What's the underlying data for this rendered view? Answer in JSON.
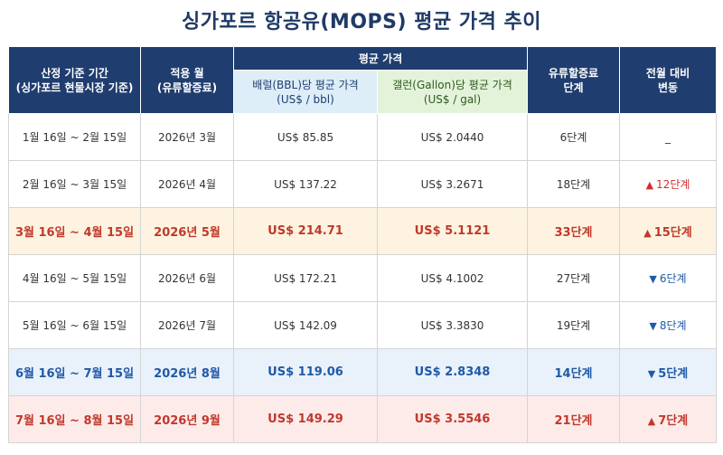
{
  "title": "싱가포르 항공유(MOPS) 평균 가격 추이",
  "headers": {
    "period": "산정 기준 기간\n(싱가포르 현물시장 기준)",
    "applied_month": "적용 월\n(유류할증료)",
    "avg_price": "평균 가격",
    "bbl": "배럴(BBL)당 평균 가격\n(US$ / bbl)",
    "gal": "갤런(Gallon)당 평균 가격\n(US$ / gal)",
    "surcharge_level": "유류할증료\n단계",
    "change": "전월 대비\n변동"
  },
  "rows": [
    {
      "period": "1월 16일 ~ 2월 15일",
      "month": "2026년 3월",
      "bbl": "US$ 85.85",
      "gal": "US$ 2.0440",
      "level": "6단계",
      "change": "_",
      "dir": "none",
      "style": ""
    },
    {
      "period": "2월 16일 ~ 3월 15일",
      "month": "2026년 4월",
      "bbl": "US$ 137.22",
      "gal": "US$ 3.2671",
      "level": "18단계",
      "change": "12단계",
      "dir": "up",
      "style": ""
    },
    {
      "period": "3월 16일 ~ 4월 15일",
      "month": "2026년 5월",
      "bbl": "US$ 214.71",
      "gal": "US$ 5.1121",
      "level": "33단계",
      "change": "15단계",
      "dir": "up",
      "style": "orange"
    },
    {
      "period": "4월 16일 ~ 5월 15일",
      "month": "2026년 6월",
      "bbl": "US$ 172.21",
      "gal": "US$ 4.1002",
      "level": "27단계",
      "change": "6단계",
      "dir": "down",
      "style": ""
    },
    {
      "period": "5월 16일 ~ 6월 15일",
      "month": "2026년 7월",
      "bbl": "US$ 142.09",
      "gal": "US$ 3.3830",
      "level": "19단계",
      "change": "8단계",
      "dir": "down",
      "style": ""
    },
    {
      "period": "6월 16일 ~ 7월 15일",
      "month": "2026년 8월",
      "bbl": "US$ 119.06",
      "gal": "US$ 2.8348",
      "level": "14단계",
      "change": "5단계",
      "dir": "down",
      "style": "blue"
    },
    {
      "period": "7월 16일 ~ 8월 15일",
      "month": "2026년 9월",
      "bbl": "US$ 149.29",
      "gal": "US$ 3.5546",
      "level": "21단계",
      "change": "7단계",
      "dir": "up",
      "style": "red"
    }
  ],
  "arrows": {
    "up": "▲",
    "down": "▼"
  }
}
